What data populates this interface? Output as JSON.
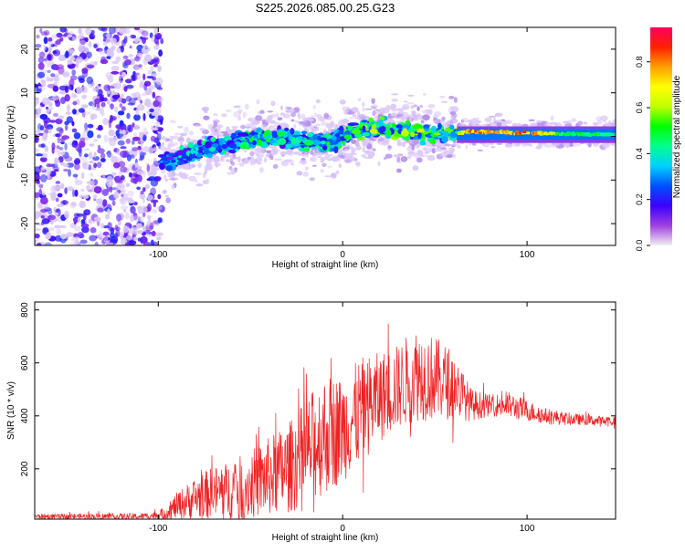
{
  "title": "S225.2026.085.00.25.G23",
  "colors": {
    "snr_line": "#ee2222",
    "colorbar_stops": [
      "#f0f0f0",
      "#a040e0",
      "#3b00ff",
      "#0050ff",
      "#00d0ff",
      "#00ff90",
      "#00ff00",
      "#c0ff00",
      "#ffff00",
      "#ffa000",
      "#ff2000",
      "#ff0060"
    ]
  },
  "chart_data": [
    {
      "type": "heatmap",
      "name": "spectrogram",
      "xlabel": "Height of straight line (km)",
      "ylabel": "Frequency (Hz)",
      "xlim": [
        -167,
        148
      ],
      "ylim": [
        -25,
        25
      ],
      "x_ticks": [
        "-100",
        "0",
        "100"
      ],
      "x_tick_values": [
        -100,
        0,
        100
      ],
      "y_ticks": [
        "-20",
        "-10",
        "0",
        "10",
        "20"
      ],
      "y_tick_values": [
        -20,
        -10,
        0,
        10,
        20
      ],
      "noise_region_x": [
        -167,
        -98
      ],
      "signal_track": {
        "x": [
          -98,
          -90,
          -80,
          -70,
          -60,
          -50,
          -40,
          -30,
          -20,
          -10,
          0,
          10,
          20,
          30,
          40,
          50,
          60,
          65,
          80,
          100,
          120,
          148
        ],
        "frequency": [
          -6,
          -5,
          -3.5,
          -2,
          -1.5,
          -0.5,
          0,
          -0.5,
          -1,
          -1.5,
          0,
          1.5,
          2,
          1.5,
          1,
          0.5,
          0.5,
          1,
          1,
          0.8,
          0.5,
          0.5
        ],
        "amplitude": [
          0.35,
          0.4,
          0.42,
          0.45,
          0.45,
          0.5,
          0.5,
          0.45,
          0.45,
          0.5,
          0.55,
          0.6,
          0.6,
          0.6,
          0.62,
          0.6,
          0.55,
          0.85,
          0.9,
          0.9,
          0.55,
          0.5
        ]
      },
      "colorbar": {
        "label": "Normalized spectral amplitude",
        "range": [
          0,
          0.95
        ],
        "ticks": [
          "0.0",
          "0.2",
          "0.4",
          "0.6",
          "0.8"
        ],
        "tick_values": [
          0,
          0.2,
          0.4,
          0.6,
          0.8
        ]
      }
    },
    {
      "type": "line",
      "name": "snr",
      "xlabel": "Height of straight line (km)",
      "ylabel": "SNR (10 * v/v)",
      "xlim": [
        -167,
        148
      ],
      "ylim": [
        10,
        830
      ],
      "x_ticks": [
        "-100",
        "0",
        "100"
      ],
      "x_tick_values": [
        -100,
        0,
        100
      ],
      "y_ticks": [
        "200",
        "400",
        "600",
        "800"
      ],
      "y_tick_values": [
        200,
        400,
        600,
        800
      ],
      "series": [
        {
          "name": "SNR",
          "x": [
            -167,
            -150,
            -130,
            -110,
            -100,
            -95,
            -90,
            -80,
            -70,
            -60,
            -50,
            -40,
            -30,
            -20,
            -10,
            0,
            10,
            20,
            30,
            40,
            50,
            60,
            70,
            80,
            90,
            100,
            110,
            120,
            130,
            140,
            148
          ],
          "mean": [
            20,
            20,
            20,
            20,
            25,
            35,
            60,
            90,
            110,
            120,
            140,
            170,
            200,
            260,
            330,
            350,
            420,
            470,
            510,
            560,
            540,
            520,
            440,
            440,
            440,
            420,
            400,
            390,
            385,
            380,
            380
          ],
          "spread": [
            10,
            10,
            12,
            12,
            15,
            30,
            50,
            80,
            100,
            110,
            130,
            150,
            170,
            200,
            230,
            200,
            200,
            170,
            160,
            180,
            160,
            130,
            60,
            40,
            50,
            40,
            30,
            25,
            20,
            20,
            20
          ]
        }
      ]
    }
  ]
}
